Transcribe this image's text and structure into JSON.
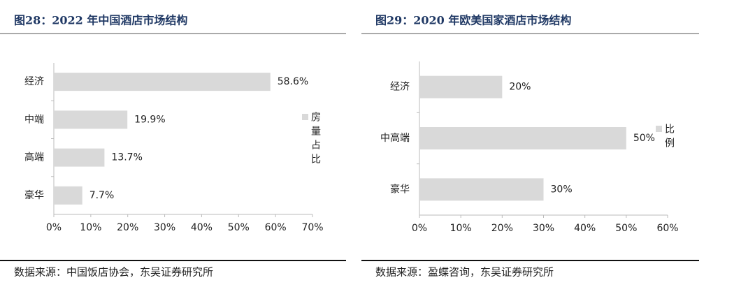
{
  "chart_data": [
    {
      "type": "bar",
      "orientation": "horizontal",
      "title": "图28：2022 年中国酒店市场结构",
      "categories": [
        "经济",
        "中端",
        "高端",
        "豪华"
      ],
      "series": [
        {
          "name": "房量占比",
          "color": "#d9d9d9",
          "values": [
            58.6,
            19.9,
            13.7,
            7.7
          ],
          "value_labels": [
            "58.6%",
            "19.9%",
            "13.7%",
            "7.7%"
          ]
        }
      ],
      "xlim": [
        0,
        70
      ],
      "xticks": [
        {
          "value": 0,
          "label": "0%"
        },
        {
          "value": 10,
          "label": "10%"
        },
        {
          "value": 20,
          "label": "20%"
        },
        {
          "value": 30,
          "label": "30%"
        },
        {
          "value": 40,
          "label": "40%"
        },
        {
          "value": 50,
          "label": "50%"
        },
        {
          "value": 60,
          "label": "60%"
        },
        {
          "value": 70,
          "label": "70%"
        }
      ],
      "source": "数据来源：中国饭店协会，东吴证券研究所"
    },
    {
      "type": "bar",
      "orientation": "horizontal",
      "title": "图29：2020 年欧美国家酒店市场结构",
      "categories": [
        "经济",
        "中高端",
        "豪华"
      ],
      "series": [
        {
          "name": "比例",
          "color": "#d9d9d9",
          "values": [
            20,
            50,
            30
          ],
          "value_labels": [
            "20%",
            "50%",
            "30%"
          ]
        }
      ],
      "xlim": [
        0,
        60
      ],
      "xticks": [
        {
          "value": 0,
          "label": "0%"
        },
        {
          "value": 10,
          "label": "10%"
        },
        {
          "value": 20,
          "label": "20%"
        },
        {
          "value": 30,
          "label": "30%"
        },
        {
          "value": 40,
          "label": "40%"
        },
        {
          "value": 50,
          "label": "50%"
        },
        {
          "value": 60,
          "label": "60%"
        }
      ],
      "source": "数据来源：盈蝶咨询，东吴证券研究所"
    }
  ]
}
